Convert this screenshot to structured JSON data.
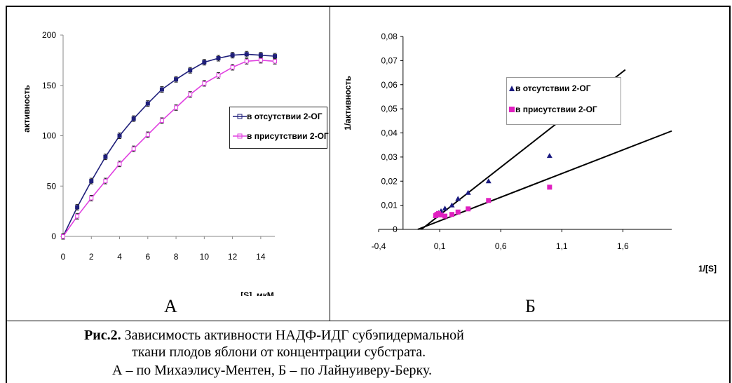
{
  "panels": {
    "a_letter": "А",
    "b_letter": "Б"
  },
  "caption": {
    "bold_prefix": "Рис.2.",
    "line1": " Зависимость активности НАДФ-ИДГ субэпидермальной",
    "line2": "ткани плодов яблони от концентрации субстрата.",
    "line3": "А – по Михаэлису-Ментен, Б – по Лайнуиверу-Берку."
  },
  "chart_data": [
    {
      "type": "line",
      "ylabel": "активность",
      "xlabel": "[S], мкМ",
      "xlim": [
        0,
        15
      ],
      "ylim": [
        0,
        200
      ],
      "x_ticks": [
        "0",
        "2",
        "4",
        "6",
        "8",
        "10",
        "12",
        "14"
      ],
      "y_ticks": [
        "0",
        "50",
        "100",
        "150",
        "200"
      ],
      "legend_position": "right",
      "series": [
        {
          "name": "в отсутствии 2-ОГ",
          "color": "#1f1f7a",
          "x": [
            0,
            1,
            2,
            3,
            4,
            5,
            6,
            7,
            8,
            9,
            10,
            11,
            12,
            13,
            14,
            15
          ],
          "y": [
            0,
            29,
            55,
            79,
            100,
            117,
            132,
            146,
            156,
            165,
            173,
            177,
            180,
            181,
            180,
            179
          ]
        },
        {
          "name": "в присутствии 2-ОГ",
          "color": "#e040e0",
          "x": [
            0,
            1,
            2,
            3,
            4,
            5,
            6,
            7,
            8,
            9,
            10,
            11,
            12,
            13,
            14,
            15
          ],
          "y": [
            0,
            20,
            38,
            55,
            72,
            87,
            101,
            115,
            128,
            141,
            152,
            160,
            168,
            174,
            175,
            174
          ]
        }
      ]
    },
    {
      "type": "scatter",
      "ylabel": "1/активность",
      "xlabel": "1/[S]",
      "xlim": [
        -0.4,
        2.0
      ],
      "ylim": [
        0,
        0.08
      ],
      "x_ticks": [
        "-0,4",
        "0,1",
        "0,6",
        "1,1",
        "1,6"
      ],
      "y_ticks": [
        "0",
        "0,01",
        "0,02",
        "0,03",
        "0,04",
        "0,05",
        "0,06",
        "0,07",
        "0,08"
      ],
      "legend_position": "top-right",
      "series": [
        {
          "name": "в отсутствии 2-ОГ",
          "color": "#1a1a80",
          "marker": "triangle",
          "x": [
            0.067,
            0.077,
            0.091,
            0.111,
            0.143,
            0.2,
            0.25,
            0.333,
            0.5,
            1.0
          ],
          "y": [
            0.0056,
            0.0063,
            0.0068,
            0.0076,
            0.0087,
            0.01,
            0.0127,
            0.0152,
            0.02,
            0.0305
          ],
          "trendline": [
            [
              -0.05,
              0.0
            ],
            [
              1.62,
              0.0662
            ]
          ]
        },
        {
          "name": "в присутствии 2-ОГ",
          "color": "#e020c0",
          "marker": "square",
          "x": [
            0.067,
            0.077,
            0.091,
            0.111,
            0.143,
            0.2,
            0.25,
            0.333,
            0.5,
            1.0
          ],
          "y": [
            0.0057,
            0.0062,
            0.0066,
            0.006,
            0.0055,
            0.0062,
            0.0072,
            0.0085,
            0.012,
            0.0175
          ],
          "trendline": [
            [
              -0.08,
              0.0
            ],
            [
              2.0,
              0.0408
            ]
          ]
        }
      ]
    }
  ]
}
